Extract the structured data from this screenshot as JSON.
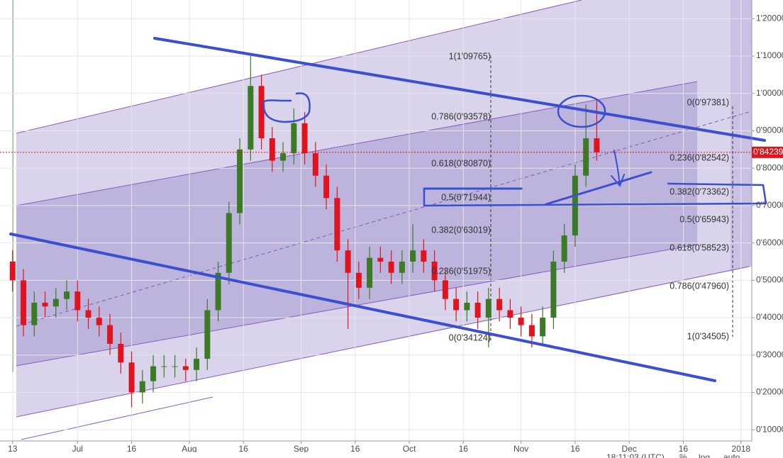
{
  "chart_data": {
    "type": "candlestick",
    "x": [
      0,
      3,
      6,
      9,
      12,
      15,
      18,
      21,
      24,
      27,
      30,
      33,
      36,
      39,
      42,
      45,
      48,
      51,
      54,
      57,
      60,
      63,
      66,
      69,
      72,
      75,
      78,
      81,
      84,
      87,
      90,
      93,
      96,
      99,
      102,
      105,
      108,
      111,
      114,
      117,
      120,
      123,
      126,
      129,
      132,
      135,
      138,
      141,
      144,
      147,
      150,
      153,
      156,
      159,
      162
    ],
    "candles": [
      [
        0.55,
        0.58,
        0.47,
        0.5
      ],
      [
        0.5,
        0.53,
        0.35,
        0.38
      ],
      [
        0.38,
        0.47,
        0.35,
        0.44
      ],
      [
        0.44,
        0.47,
        0.4,
        0.43
      ],
      [
        0.43,
        0.48,
        0.4,
        0.45
      ],
      [
        0.45,
        0.5,
        0.42,
        0.47
      ],
      [
        0.47,
        0.5,
        0.39,
        0.42
      ],
      [
        0.42,
        0.45,
        0.37,
        0.4
      ],
      [
        0.4,
        0.43,
        0.35,
        0.38
      ],
      [
        0.38,
        0.41,
        0.3,
        0.33
      ],
      [
        0.33,
        0.36,
        0.25,
        0.28
      ],
      [
        0.28,
        0.31,
        0.16,
        0.2
      ],
      [
        0.2,
        0.26,
        0.17,
        0.23
      ],
      [
        0.23,
        0.3,
        0.2,
        0.27
      ],
      [
        0.27,
        0.3,
        0.24,
        0.27
      ],
      [
        0.27,
        0.3,
        0.24,
        0.27
      ],
      [
        0.27,
        0.29,
        0.23,
        0.26
      ],
      [
        0.26,
        0.32,
        0.23,
        0.29
      ],
      [
        0.29,
        0.45,
        0.26,
        0.42
      ],
      [
        0.42,
        0.55,
        0.39,
        0.52
      ],
      [
        0.52,
        0.71,
        0.49,
        0.68
      ],
      [
        0.68,
        0.88,
        0.65,
        0.85
      ],
      [
        0.85,
        1.1,
        0.82,
        1.02
      ],
      [
        1.02,
        1.05,
        0.85,
        0.88
      ],
      [
        0.88,
        0.91,
        0.79,
        0.82
      ],
      [
        0.82,
        0.87,
        0.79,
        0.84
      ],
      [
        0.84,
        0.96,
        0.81,
        0.92
      ],
      [
        0.92,
        0.95,
        0.81,
        0.84
      ],
      [
        0.84,
        0.87,
        0.75,
        0.78
      ],
      [
        0.78,
        0.81,
        0.69,
        0.72
      ],
      [
        0.72,
        0.75,
        0.55,
        0.58
      ],
      [
        0.58,
        0.61,
        0.37,
        0.52
      ],
      [
        0.52,
        0.55,
        0.45,
        0.48
      ],
      [
        0.48,
        0.59,
        0.45,
        0.56
      ],
      [
        0.56,
        0.59,
        0.52,
        0.55
      ],
      [
        0.55,
        0.58,
        0.49,
        0.52
      ],
      [
        0.52,
        0.58,
        0.49,
        0.55
      ],
      [
        0.55,
        0.65,
        0.52,
        0.58
      ],
      [
        0.58,
        0.61,
        0.52,
        0.55
      ],
      [
        0.55,
        0.58,
        0.47,
        0.5
      ],
      [
        0.5,
        0.53,
        0.42,
        0.45
      ],
      [
        0.45,
        0.48,
        0.39,
        0.42
      ],
      [
        0.42,
        0.47,
        0.39,
        0.44
      ],
      [
        0.44,
        0.47,
        0.37,
        0.4
      ],
      [
        0.4,
        0.48,
        0.32,
        0.45
      ],
      [
        0.45,
        0.48,
        0.39,
        0.42
      ],
      [
        0.42,
        0.45,
        0.37,
        0.4
      ],
      [
        0.4,
        0.43,
        0.35,
        0.38
      ],
      [
        0.38,
        0.41,
        0.32,
        0.35
      ],
      [
        0.35,
        0.43,
        0.33,
        0.4
      ],
      [
        0.4,
        0.58,
        0.37,
        0.55
      ],
      [
        0.55,
        0.65,
        0.52,
        0.62
      ],
      [
        0.62,
        0.81,
        0.59,
        0.78
      ],
      [
        0.78,
        0.97,
        0.75,
        0.88
      ],
      [
        0.88,
        0.98,
        0.82,
        0.84239
      ]
    ],
    "up_color": "#3d7a26",
    "down_color": "#e0141e",
    "xlim": [
      -3.5,
      205
    ],
    "ylim": [
      0.07,
      1.25
    ],
    "xticks": [
      {
        "value": 0,
        "label": "13"
      },
      {
        "value": 18,
        "label": "Jul"
      },
      {
        "value": 33,
        "label": "16"
      },
      {
        "value": 49,
        "label": "Aug"
      },
      {
        "value": 64,
        "label": "16"
      },
      {
        "value": 80,
        "label": "Sep"
      },
      {
        "value": 95,
        "label": "16"
      },
      {
        "value": 110,
        "label": "Oct"
      },
      {
        "value": 125,
        "label": "16"
      },
      {
        "value": 141,
        "label": "Nov"
      },
      {
        "value": 156,
        "label": "16"
      },
      {
        "value": 171,
        "label": "Dec"
      },
      {
        "value": 186,
        "label": "16"
      },
      {
        "value": 202,
        "label": "2018"
      }
    ],
    "yticks": [
      {
        "value": 0.1,
        "label": "0'10000"
      },
      {
        "value": 0.2,
        "label": "0'20000"
      },
      {
        "value": 0.3,
        "label": "0'30000"
      },
      {
        "value": 0.4,
        "label": "0'40000"
      },
      {
        "value": 0.5,
        "label": "0'50000"
      },
      {
        "value": 0.6,
        "label": "0'60000"
      },
      {
        "value": 0.7,
        "label": "0'70000"
      },
      {
        "value": 0.8,
        "label": "0'80000"
      },
      {
        "value": 0.9,
        "label": "0'90000"
      },
      {
        "value": 1.0,
        "label": "1'00000"
      },
      {
        "value": 1.1,
        "label": "1'10000"
      },
      {
        "value": 1.2,
        "label": "1'20000"
      }
    ],
    "grid": true,
    "last_price": {
      "value": 0.84239,
      "label": "0'84239"
    },
    "annotations": [
      "1(1'09765)",
      "0.786(0'93578)",
      "0.618(0'80870)",
      "0.5(0'71944)",
      "0.382(0'63019)",
      "0.236(0'51975)",
      "0(0'34124)",
      "0(0'97381)",
      "0.236(0'82542)",
      "0.382(0'73362)",
      "0.5(0'65943)",
      "0.618(0'58523)",
      "0.786(0'47960)",
      "1(0'34505)"
    ],
    "toolbar": [
      "18:11:03 (UTC)",
      "%",
      "log",
      "auto"
    ]
  }
}
